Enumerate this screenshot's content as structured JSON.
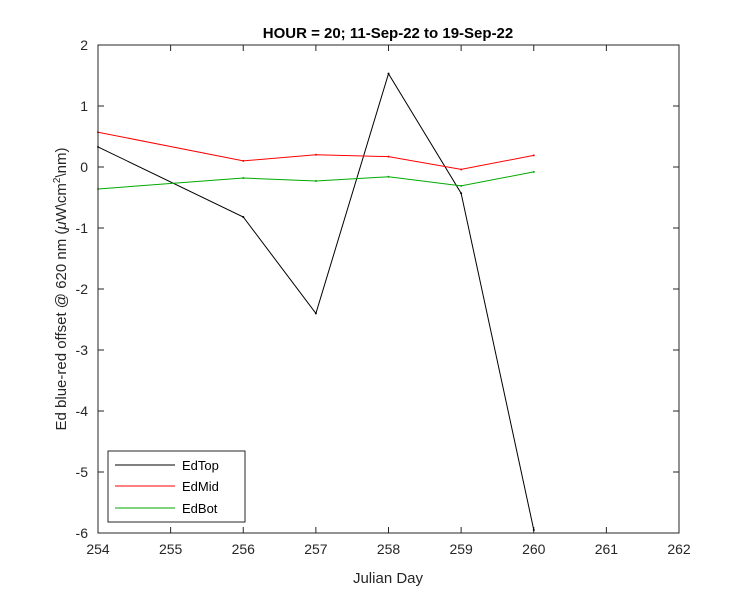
{
  "chart_data": {
    "type": "line",
    "title": "HOUR = 20; 11-Sep-22 to 19-Sep-22",
    "xlabel": "Julian Day",
    "ylabel_parts": [
      "Ed blue-red offset @ 620 nm (",
      "μ",
      "W\\cm",
      "2",
      "\\nm)"
    ],
    "xlim": [
      254,
      262
    ],
    "ylim": [
      -6,
      2
    ],
    "xticks": [
      "254",
      "255",
      "256",
      "257",
      "258",
      "259",
      "260",
      "261",
      "262"
    ],
    "yticks": [
      "2",
      "1",
      "0",
      "-1",
      "-2",
      "-3",
      "-4",
      "-5",
      "-6"
    ],
    "xtick_values": [
      254,
      255,
      256,
      257,
      258,
      259,
      260,
      261,
      262
    ],
    "ytick_values": [
      2,
      1,
      0,
      -1,
      -2,
      -3,
      -4,
      -5,
      -6
    ],
    "grid": false,
    "legend_position": "bottom-left",
    "series": [
      {
        "name": "EdTop",
        "color": "#000000",
        "x": [
          254,
          256,
          257,
          258,
          259,
          260
        ],
        "y": [
          0.33,
          -0.82,
          -2.4,
          1.53,
          -0.43,
          -5.95
        ]
      },
      {
        "name": "EdMid",
        "color": "#ff0000",
        "x": [
          254,
          256,
          257,
          258,
          259,
          260
        ],
        "y": [
          0.57,
          0.1,
          0.2,
          0.17,
          -0.04,
          0.19
        ]
      },
      {
        "name": "EdBot",
        "color": "#00aa00",
        "x": [
          254,
          256,
          257,
          258,
          259,
          260
        ],
        "y": [
          -0.36,
          -0.18,
          -0.23,
          -0.16,
          -0.31,
          -0.08
        ]
      }
    ]
  }
}
